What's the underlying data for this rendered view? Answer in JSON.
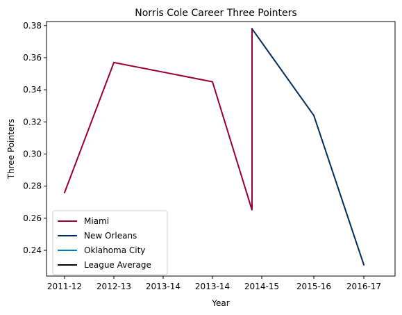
{
  "chart_data": {
    "type": "line",
    "title": "Norris Cole Career Three Pointers",
    "xlabel": "Year",
    "ylabel": "Three Pointers",
    "x_categories": [
      "2011-12",
      "2012-13",
      "2013-14",
      "2013-14",
      "2014-15",
      "2015-16",
      "2016-17"
    ],
    "yticks": [
      "0.24",
      "0.26",
      "0.28",
      "0.30",
      "0.32",
      "0.34",
      "0.36",
      "0.38"
    ],
    "ylim": [
      0.224,
      0.3825
    ],
    "grid": false,
    "legend_placement": "lower-left",
    "series": [
      {
        "name": "Miami",
        "color": "#98002E",
        "points": [
          {
            "x": "2011-12",
            "y": 0.276
          },
          {
            "x": "2012-13",
            "y": 0.357
          },
          {
            "x": "2013-14",
            "y": 0.345
          },
          {
            "x": "2014-15",
            "y": 0.265
          },
          {
            "x": "2014-15",
            "y": 0.378
          }
        ]
      },
      {
        "name": "New Orleans",
        "color": "#002B5C",
        "points": [
          {
            "x": "2014-15",
            "y": 0.378
          },
          {
            "x": "2015-16",
            "y": 0.324
          },
          {
            "x": "2016-17",
            "y": 0.231
          }
        ]
      },
      {
        "name": "Oklahoma City",
        "color": "#007AC1",
        "points": []
      },
      {
        "name": "League Average",
        "color": "#000000",
        "points": []
      }
    ]
  }
}
